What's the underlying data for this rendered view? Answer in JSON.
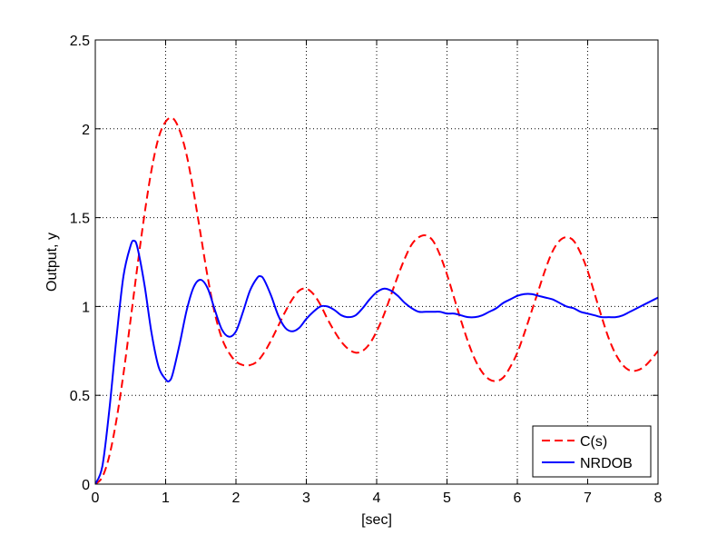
{
  "chart_data": {
    "type": "line",
    "title": "",
    "xlabel": "[sec]",
    "ylabel": "Output, y",
    "xlim": [
      0,
      8
    ],
    "ylim": [
      0,
      2.5
    ],
    "x_ticks": [
      0,
      1,
      2,
      3,
      4,
      5,
      6,
      7,
      8
    ],
    "x_tick_labels": [
      "0",
      "1",
      "2",
      "3",
      "4",
      "5",
      "6",
      "7",
      "8"
    ],
    "y_ticks": [
      0,
      0.5,
      1,
      1.5,
      2,
      2.5
    ],
    "y_tick_labels": [
      "0",
      "0.5",
      "1",
      "1.5",
      "2",
      "2.5"
    ],
    "grid": true,
    "legend_position": "bottom-right",
    "series": [
      {
        "name": "C(s)",
        "color": "#ff0000",
        "style": "dashed",
        "x": [
          0,
          0.1,
          0.2,
          0.3,
          0.4,
          0.5,
          0.6,
          0.7,
          0.8,
          0.9,
          1.0,
          1.1,
          1.2,
          1.3,
          1.4,
          1.5,
          1.6,
          1.7,
          1.8,
          1.9,
          2.0,
          2.1,
          2.2,
          2.3,
          2.4,
          2.5,
          2.6,
          2.7,
          2.8,
          2.9,
          3.0,
          3.1,
          3.2,
          3.3,
          3.4,
          3.5,
          3.6,
          3.7,
          3.8,
          3.9,
          4.0,
          4.1,
          4.2,
          4.3,
          4.4,
          4.5,
          4.6,
          4.7,
          4.8,
          4.9,
          5.0,
          5.1,
          5.2,
          5.3,
          5.4,
          5.5,
          5.6,
          5.7,
          5.8,
          5.9,
          6.0,
          6.1,
          6.2,
          6.3,
          6.4,
          6.5,
          6.6,
          6.7,
          6.8,
          6.9,
          7.0,
          7.1,
          7.2,
          7.3,
          7.4,
          7.5,
          7.6,
          7.7,
          7.8,
          7.9,
          8.0
        ],
        "y": [
          0,
          0.04,
          0.16,
          0.36,
          0.62,
          0.92,
          1.23,
          1.52,
          1.77,
          1.95,
          2.04,
          2.06,
          1.99,
          1.85,
          1.64,
          1.4,
          1.16,
          0.96,
          0.82,
          0.74,
          0.69,
          0.67,
          0.67,
          0.69,
          0.74,
          0.81,
          0.89,
          0.97,
          1.04,
          1.09,
          1.1,
          1.07,
          1.01,
          0.93,
          0.86,
          0.8,
          0.76,
          0.74,
          0.75,
          0.79,
          0.86,
          0.95,
          1.06,
          1.17,
          1.27,
          1.35,
          1.39,
          1.4,
          1.37,
          1.29,
          1.18,
          1.05,
          0.92,
          0.8,
          0.7,
          0.63,
          0.59,
          0.58,
          0.6,
          0.66,
          0.74,
          0.85,
          0.97,
          1.09,
          1.21,
          1.31,
          1.37,
          1.39,
          1.37,
          1.3,
          1.2,
          1.07,
          0.94,
          0.82,
          0.73,
          0.67,
          0.64,
          0.64,
          0.66,
          0.7,
          0.75
        ]
      },
      {
        "name": "NRDOB",
        "color": "#0000ff",
        "style": "solid",
        "x": [
          0,
          0.1,
          0.2,
          0.3,
          0.4,
          0.5,
          0.55,
          0.6,
          0.7,
          0.8,
          0.9,
          1.0,
          1.05,
          1.1,
          1.2,
          1.3,
          1.4,
          1.5,
          1.6,
          1.7,
          1.8,
          1.9,
          2.0,
          2.1,
          2.2,
          2.3,
          2.35,
          2.4,
          2.5,
          2.6,
          2.7,
          2.8,
          2.9,
          3.0,
          3.1,
          3.2,
          3.3,
          3.4,
          3.5,
          3.6,
          3.7,
          3.8,
          3.9,
          4.0,
          4.1,
          4.2,
          4.3,
          4.4,
          4.5,
          4.6,
          4.7,
          4.8,
          4.9,
          5.0,
          5.1,
          5.2,
          5.3,
          5.4,
          5.5,
          5.6,
          5.7,
          5.8,
          5.9,
          6.0,
          6.1,
          6.2,
          6.3,
          6.4,
          6.5,
          6.6,
          6.7,
          6.8,
          6.9,
          7.0,
          7.1,
          7.2,
          7.3,
          7.4,
          7.5,
          7.6,
          7.7,
          7.8,
          7.9,
          8.0
        ],
        "y": [
          0,
          0.1,
          0.42,
          0.82,
          1.17,
          1.34,
          1.37,
          1.33,
          1.12,
          0.85,
          0.66,
          0.59,
          0.58,
          0.62,
          0.79,
          0.98,
          1.11,
          1.15,
          1.1,
          0.98,
          0.87,
          0.83,
          0.86,
          0.97,
          1.09,
          1.16,
          1.17,
          1.15,
          1.06,
          0.95,
          0.88,
          0.86,
          0.88,
          0.93,
          0.97,
          1.0,
          1.0,
          0.98,
          0.95,
          0.94,
          0.95,
          0.99,
          1.04,
          1.08,
          1.1,
          1.09,
          1.06,
          1.02,
          0.99,
          0.97,
          0.97,
          0.97,
          0.97,
          0.96,
          0.96,
          0.95,
          0.94,
          0.94,
          0.95,
          0.97,
          0.99,
          1.02,
          1.04,
          1.06,
          1.07,
          1.07,
          1.06,
          1.05,
          1.04,
          1.02,
          1.0,
          0.99,
          0.97,
          0.96,
          0.95,
          0.94,
          0.94,
          0.94,
          0.95,
          0.97,
          0.99,
          1.01,
          1.03,
          1.05
        ]
      }
    ]
  }
}
